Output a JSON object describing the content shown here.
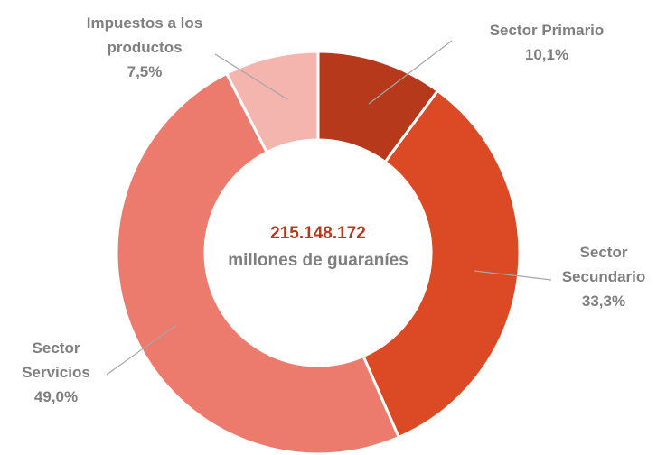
{
  "chart_data": {
    "type": "donut",
    "categories": [
      "Sector Primario",
      "Sector Secundario",
      "Sector Servicios",
      "Impuestos a los productos"
    ],
    "values": [
      10.1,
      33.3,
      49.0,
      7.5
    ],
    "value_labels": [
      "10,1%",
      "33,3%",
      "49,0%",
      "7,5%"
    ],
    "colors": [
      "#b5391a",
      "#db4a24",
      "#ec7b6e",
      "#f4b5ae"
    ],
    "center_value": "215.148.172",
    "center_text": "millones de guaraníes"
  }
}
